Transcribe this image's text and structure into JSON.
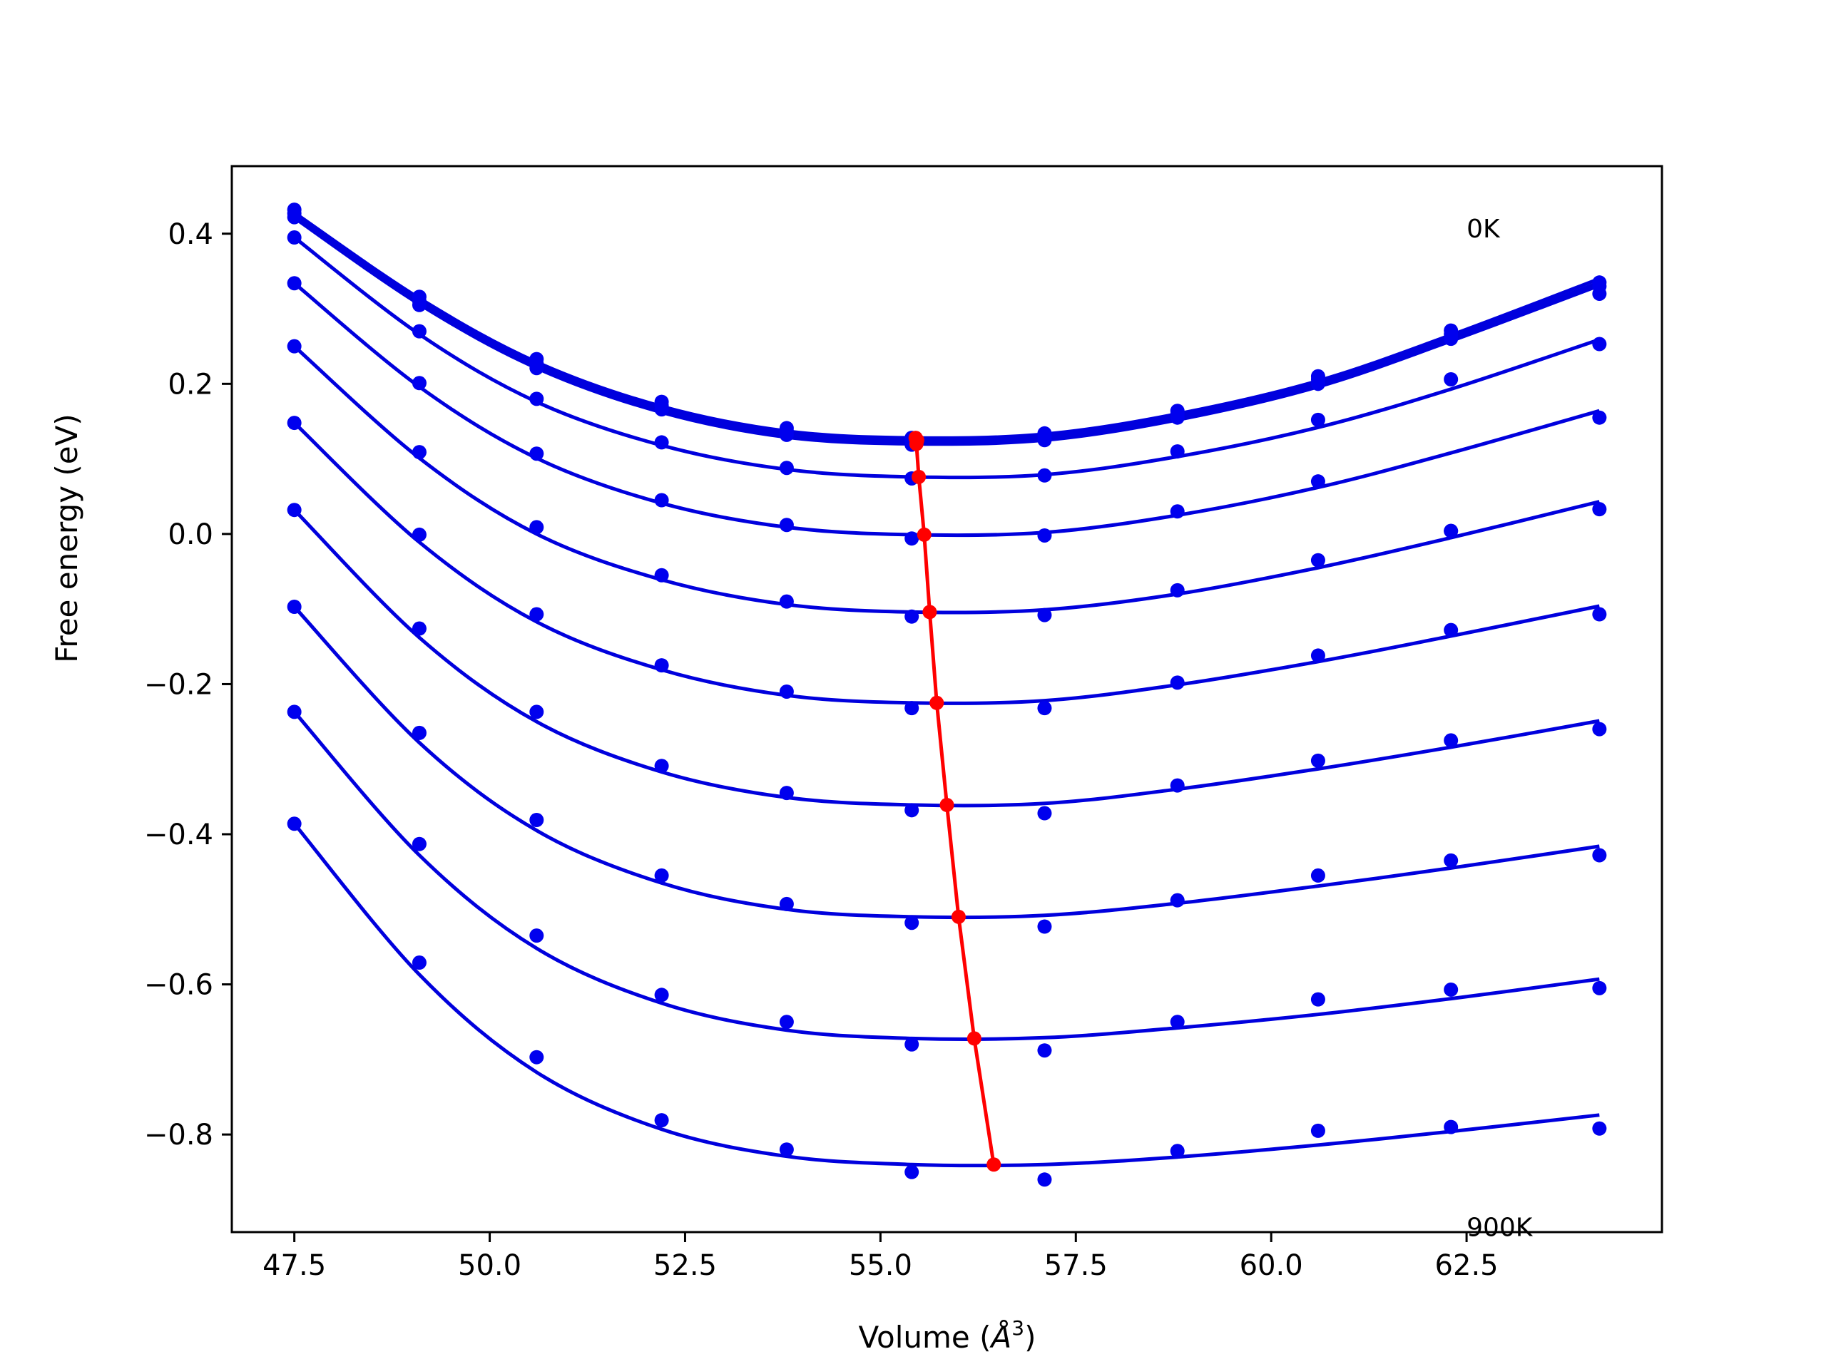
{
  "chart_data": {
    "type": "line",
    "xlabel_main": "Volume (",
    "xlabel_unit": "Å",
    "xlabel_exp": "3",
    "xlabel_end": ")",
    "ylabel": "Free energy (eV)",
    "xlim": [
      46.7,
      65.0
    ],
    "ylim": [
      -0.93,
      0.49
    ],
    "xticks": [
      47.5,
      50.0,
      52.5,
      55.0,
      57.5,
      60.0,
      62.5
    ],
    "xtick_labels": [
      "47.5",
      "50.0",
      "52.5",
      "55.0",
      "57.5",
      "60.0",
      "62.5"
    ],
    "yticks": [
      0.4,
      0.2,
      0.0,
      -0.2,
      -0.4,
      -0.6,
      -0.8
    ],
    "ytick_labels": [
      "0.4",
      "0.2",
      "0.0",
      "−0.2",
      "−0.4",
      "−0.6",
      "−0.8"
    ],
    "annotations": [
      {
        "text": "0K",
        "x": 62.5,
        "y": 0.395
      },
      {
        "text": "900K",
        "x": 62.5,
        "y": -0.935
      }
    ],
    "colors": {
      "fit": "#0000dd",
      "points": "#0000ee",
      "minimum": "#ff0000",
      "frame": "#000000"
    },
    "volumes": [
      47.5,
      49.1,
      50.6,
      52.2,
      53.8,
      55.4,
      57.1,
      58.8,
      60.6,
      62.3,
      64.2
    ],
    "series": [
      {
        "values": [
          0.432,
          0.316,
          0.233,
          0.176,
          0.141,
          0.128,
          0.134,
          0.164,
          0.21,
          0.271,
          0.335
        ],
        "min_x": 55.45,
        "min_y": 0.128
      },
      {
        "values": [
          0.427,
          0.31,
          0.227,
          0.171,
          0.137,
          0.124,
          0.13,
          0.16,
          0.206,
          0.266,
          0.33
        ],
        "min_x": 55.47,
        "min_y": 0.125
      },
      {
        "values": [
          0.422,
          0.305,
          0.221,
          0.166,
          0.132,
          0.119,
          0.125,
          0.155,
          0.2,
          0.26,
          0.32
        ],
        "min_x": 55.46,
        "min_y": 0.12
      },
      {
        "values": [
          0.395,
          0.27,
          0.18,
          0.122,
          0.088,
          0.074,
          0.078,
          0.11,
          0.152,
          0.206,
          0.253
        ],
        "min_x": 55.49,
        "min_y": 0.076
      },
      {
        "values": [
          0.334,
          0.201,
          0.107,
          0.045,
          0.012,
          -0.006,
          -0.002,
          0.03,
          0.07,
          0.004,
          0.155
        ],
        "min_x": 55.56,
        "min_y": -0.001
      },
      {
        "values": [
          0.25,
          0.109,
          0.009,
          -0.055,
          -0.09,
          -0.11,
          -0.108,
          -0.075,
          -0.035,
          0.004,
          0.033
        ],
        "min_x": 55.63,
        "min_y": -0.104
      },
      {
        "values": [
          0.148,
          -0.001,
          -0.107,
          -0.175,
          -0.21,
          -0.232,
          -0.232,
          -0.198,
          -0.162,
          -0.128,
          -0.107
        ],
        "min_x": 55.72,
        "min_y": -0.225
      },
      {
        "values": [
          0.032,
          -0.126,
          -0.237,
          -0.309,
          -0.345,
          -0.368,
          -0.372,
          -0.335,
          -0.302,
          -0.275,
          -0.26
        ],
        "min_x": 55.85,
        "min_y": -0.361
      },
      {
        "values": [
          -0.097,
          -0.265,
          -0.381,
          -0.455,
          -0.493,
          -0.518,
          -0.523,
          -0.488,
          -0.455,
          -0.435,
          -0.428
        ],
        "min_x": 56.0,
        "min_y": -0.51
      },
      {
        "values": [
          -0.237,
          -0.413,
          -0.535,
          -0.614,
          -0.65,
          -0.68,
          -0.688,
          -0.65,
          -0.62,
          -0.607,
          -0.605
        ],
        "min_x": 56.2,
        "min_y": -0.672
      },
      {
        "values": [
          -0.386,
          -0.571,
          -0.697,
          -0.781,
          -0.82,
          -0.85,
          -0.86,
          -0.822,
          -0.795,
          -0.79,
          -0.792
        ],
        "min_x": 56.45,
        "min_y": -0.84
      }
    ],
    "fit_curves": [
      {
        "min_x": 55.45,
        "min_y": 0.128,
        "values_at_volumes": [
          0.428,
          0.314,
          0.229,
          0.17,
          0.137,
          0.128,
          0.133,
          0.16,
          0.204,
          0.265,
          0.34
        ]
      },
      {
        "min_x": 55.47,
        "min_y": 0.124,
        "values_at_volumes": [
          0.425,
          0.31,
          0.225,
          0.166,
          0.133,
          0.124,
          0.129,
          0.156,
          0.2,
          0.261,
          0.335
        ]
      },
      {
        "min_x": 55.46,
        "min_y": 0.12,
        "values_at_volumes": [
          0.421,
          0.306,
          0.221,
          0.162,
          0.129,
          0.12,
          0.125,
          0.152,
          0.196,
          0.257,
          0.331
        ]
      },
      {
        "min_x": 55.49,
        "min_y": 0.076,
        "values_at_volumes": [
          0.395,
          0.266,
          0.176,
          0.118,
          0.086,
          0.076,
          0.079,
          0.103,
          0.142,
          0.193,
          0.259
        ]
      },
      {
        "min_x": 55.56,
        "min_y": -0.001,
        "values_at_volumes": [
          0.334,
          0.196,
          0.101,
          0.041,
          0.009,
          -0.001,
          0.002,
          0.025,
          0.062,
          0.108,
          0.164
        ]
      },
      {
        "min_x": 55.63,
        "min_y": -0.104,
        "values_at_volumes": [
          0.25,
          0.101,
          0.0,
          -0.061,
          -0.094,
          -0.104,
          -0.101,
          -0.08,
          -0.045,
          -0.005,
          0.043
        ]
      },
      {
        "min_x": 55.72,
        "min_y": -0.225,
        "values_at_volumes": [
          0.148,
          -0.011,
          -0.117,
          -0.181,
          -0.215,
          -0.225,
          -0.222,
          -0.201,
          -0.17,
          -0.136,
          -0.096
        ]
      },
      {
        "min_x": 55.85,
        "min_y": -0.361,
        "values_at_volumes": [
          0.032,
          -0.138,
          -0.25,
          -0.317,
          -0.351,
          -0.361,
          -0.359,
          -0.34,
          -0.313,
          -0.284,
          -0.249
        ]
      },
      {
        "min_x": 56.0,
        "min_y": -0.51,
        "values_at_volumes": [
          -0.097,
          -0.278,
          -0.395,
          -0.465,
          -0.5,
          -0.51,
          -0.508,
          -0.492,
          -0.469,
          -0.445,
          -0.416
        ]
      },
      {
        "min_x": 56.2,
        "min_y": -0.672,
        "values_at_volumes": [
          -0.237,
          -0.428,
          -0.552,
          -0.625,
          -0.661,
          -0.672,
          -0.671,
          -0.658,
          -0.64,
          -0.619,
          -0.593
        ]
      },
      {
        "min_x": 56.45,
        "min_y": -0.84,
        "values_at_volumes": [
          -0.386,
          -0.587,
          -0.717,
          -0.793,
          -0.829,
          -0.84,
          -0.84,
          -0.83,
          -0.814,
          -0.796,
          -0.774
        ]
      }
    ]
  }
}
